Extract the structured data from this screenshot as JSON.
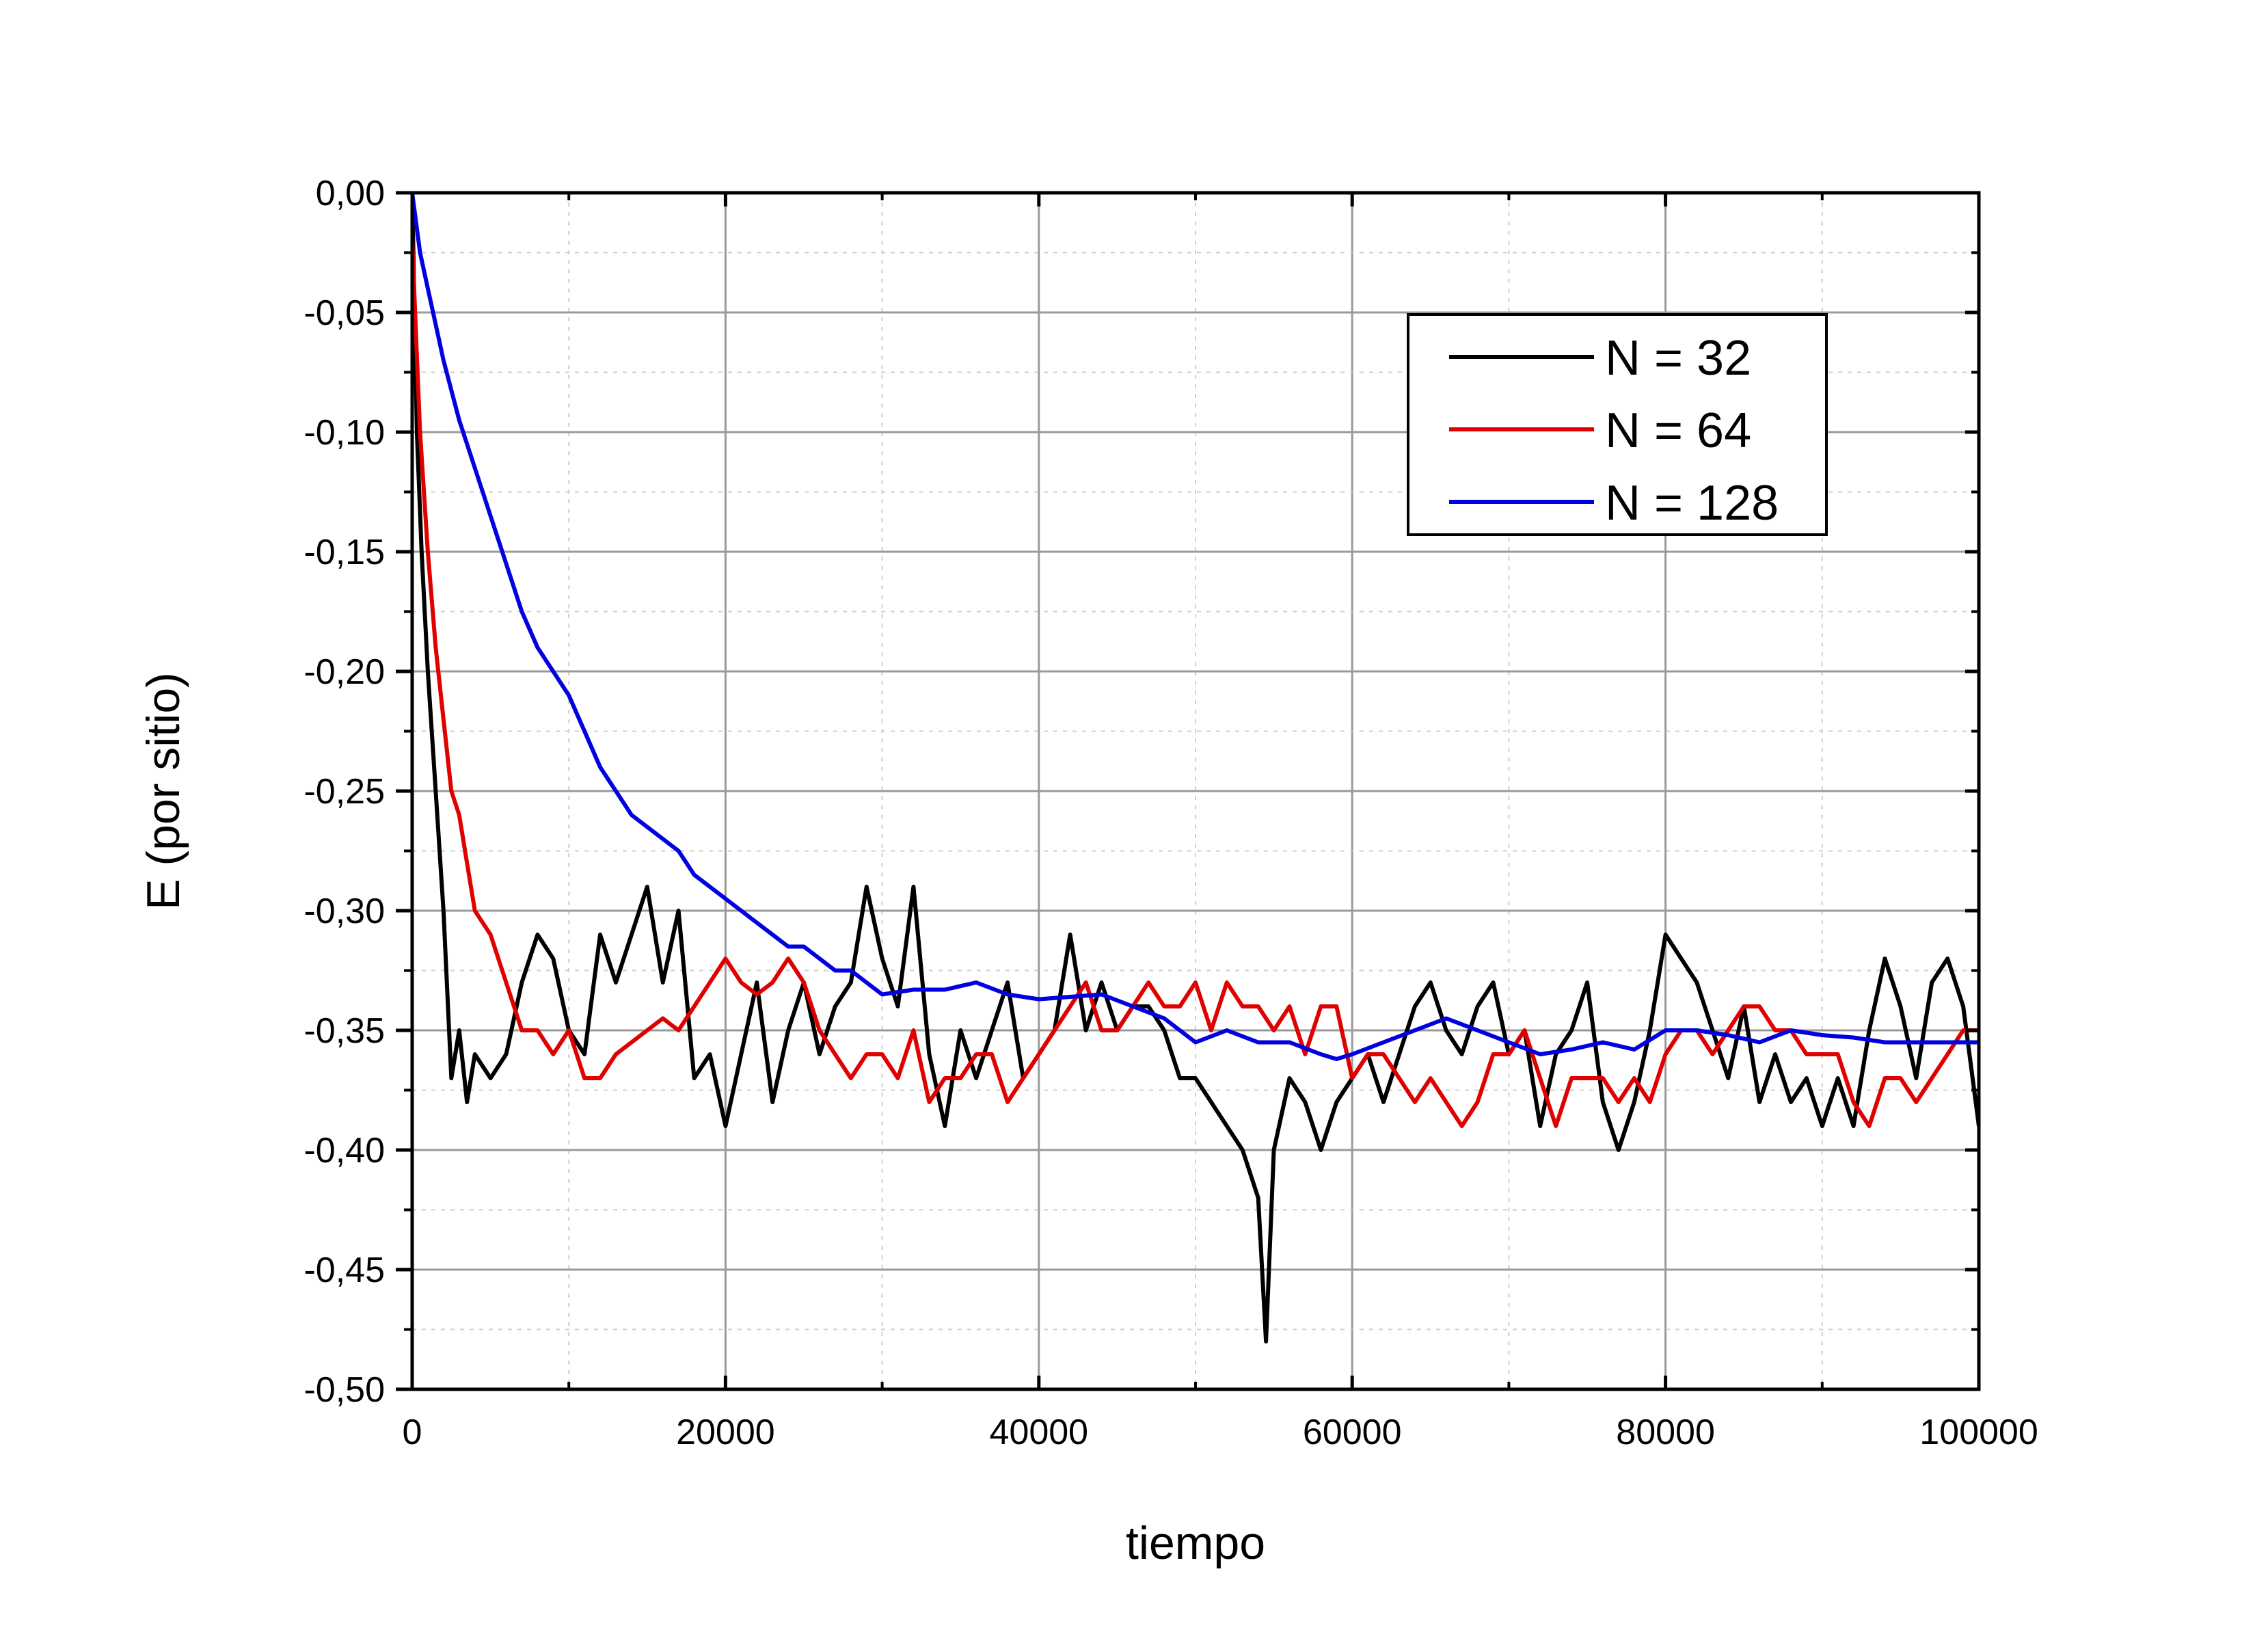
{
  "chart_data": {
    "type": "line",
    "title": "",
    "xlabel": "tiempo",
    "ylabel": "E (por sitio)",
    "xlim": [
      0,
      100000
    ],
    "ylim": [
      -0.5,
      0.0
    ],
    "x_ticks": [
      0,
      20000,
      40000,
      60000,
      80000,
      100000
    ],
    "x_tick_labels": [
      "0",
      "20000",
      "40000",
      "60000",
      "80000",
      "100000"
    ],
    "y_ticks": [
      0.0,
      -0.05,
      -0.1,
      -0.15,
      -0.2,
      -0.25,
      -0.3,
      -0.35,
      -0.4,
      -0.45,
      -0.5
    ],
    "y_tick_labels": [
      "0,00",
      "-0,05",
      "-0,10",
      "-0,15",
      "-0,20",
      "-0,25",
      "-0,30",
      "-0,35",
      "-0,40",
      "-0,45",
      "-0,50"
    ],
    "grid": true,
    "legend_position": "top-right",
    "series": [
      {
        "name": "N = 32",
        "color": "#000000",
        "x": [
          0,
          300,
          600,
          1000,
          1500,
          2000,
          2500,
          3000,
          3500,
          4000,
          5000,
          6000,
          7000,
          8000,
          9000,
          10000,
          11000,
          12000,
          13000,
          14000,
          15000,
          16000,
          17000,
          18000,
          19000,
          20000,
          21000,
          22000,
          23000,
          24000,
          25000,
          26000,
          27000,
          28000,
          29000,
          30000,
          31000,
          32000,
          33000,
          34000,
          35000,
          36000,
          37000,
          38000,
          39000,
          40000,
          41000,
          42000,
          43000,
          44000,
          45000,
          46000,
          47000,
          48000,
          49000,
          50000,
          51000,
          52000,
          53000,
          54000,
          54500,
          55000,
          56000,
          57000,
          58000,
          59000,
          60000,
          61000,
          62000,
          63000,
          64000,
          65000,
          66000,
          67000,
          68000,
          69000,
          70000,
          71000,
          72000,
          73000,
          74000,
          75000,
          76000,
          77000,
          78000,
          79000,
          80000,
          81000,
          82000,
          83000,
          84000,
          85000,
          86000,
          87000,
          88000,
          89000,
          90000,
          91000,
          92000,
          93000,
          94000,
          95000,
          96000,
          97000,
          98000,
          99000,
          100000
        ],
        "y": [
          0.0,
          -0.1,
          -0.15,
          -0.2,
          -0.25,
          -0.3,
          -0.37,
          -0.35,
          -0.38,
          -0.36,
          -0.37,
          -0.36,
          -0.33,
          -0.31,
          -0.32,
          -0.35,
          -0.36,
          -0.31,
          -0.33,
          -0.31,
          -0.29,
          -0.33,
          -0.3,
          -0.37,
          -0.36,
          -0.39,
          -0.36,
          -0.33,
          -0.38,
          -0.35,
          -0.33,
          -0.36,
          -0.34,
          -0.33,
          -0.29,
          -0.32,
          -0.34,
          -0.29,
          -0.36,
          -0.39,
          -0.35,
          -0.37,
          -0.35,
          -0.33,
          -0.37,
          -0.36,
          -0.35,
          -0.31,
          -0.35,
          -0.33,
          -0.35,
          -0.34,
          -0.34,
          -0.35,
          -0.37,
          -0.37,
          -0.38,
          -0.39,
          -0.4,
          -0.42,
          -0.48,
          -0.4,
          -0.37,
          -0.38,
          -0.4,
          -0.38,
          -0.37,
          -0.36,
          -0.38,
          -0.36,
          -0.34,
          -0.33,
          -0.35,
          -0.36,
          -0.34,
          -0.33,
          -0.36,
          -0.35,
          -0.39,
          -0.36,
          -0.35,
          -0.33,
          -0.38,
          -0.4,
          -0.38,
          -0.35,
          -0.31,
          -0.32,
          -0.33,
          -0.35,
          -0.37,
          -0.34,
          -0.38,
          -0.36,
          -0.38,
          -0.37,
          -0.39,
          -0.37,
          -0.39,
          -0.35,
          -0.32,
          -0.34,
          -0.37,
          -0.33,
          -0.32,
          -0.34,
          -0.39
        ]
      },
      {
        "name": "N = 64",
        "color": "#e00000",
        "x": [
          0,
          250,
          500,
          1000,
          1500,
          2000,
          2500,
          3000,
          3500,
          4000,
          5000,
          6000,
          7000,
          8000,
          9000,
          10000,
          11000,
          12000,
          13000,
          14000,
          15000,
          16000,
          17000,
          18000,
          19000,
          20000,
          21000,
          22000,
          23000,
          24000,
          25000,
          26000,
          27000,
          28000,
          29000,
          30000,
          31000,
          32000,
          33000,
          34000,
          35000,
          36000,
          37000,
          38000,
          39000,
          40000,
          41000,
          42000,
          43000,
          44000,
          45000,
          46000,
          47000,
          48000,
          49000,
          50000,
          51000,
          52000,
          53000,
          54000,
          55000,
          56000,
          57000,
          58000,
          59000,
          60000,
          61000,
          62000,
          63000,
          64000,
          65000,
          66000,
          67000,
          68000,
          69000,
          70000,
          71000,
          72000,
          73000,
          74000,
          75000,
          76000,
          77000,
          78000,
          79000,
          80000,
          81000,
          82000,
          83000,
          84000,
          85000,
          86000,
          87000,
          88000,
          89000,
          90000,
          91000,
          92000,
          93000,
          94000,
          95000,
          96000,
          97000,
          98000,
          99000,
          100000
        ],
        "y": [
          -0.02,
          -0.06,
          -0.1,
          -0.15,
          -0.19,
          -0.22,
          -0.25,
          -0.26,
          -0.28,
          -0.3,
          -0.31,
          -0.33,
          -0.35,
          -0.35,
          -0.36,
          -0.35,
          -0.37,
          -0.37,
          -0.36,
          -0.355,
          -0.35,
          -0.345,
          -0.35,
          -0.34,
          -0.33,
          -0.32,
          -0.33,
          -0.335,
          -0.33,
          -0.32,
          -0.33,
          -0.35,
          -0.36,
          -0.37,
          -0.36,
          -0.36,
          -0.37,
          -0.35,
          -0.38,
          -0.37,
          -0.37,
          -0.36,
          -0.36,
          -0.38,
          -0.37,
          -0.36,
          -0.35,
          -0.34,
          -0.33,
          -0.35,
          -0.35,
          -0.34,
          -0.33,
          -0.34,
          -0.34,
          -0.33,
          -0.35,
          -0.33,
          -0.34,
          -0.34,
          -0.35,
          -0.34,
          -0.36,
          -0.34,
          -0.34,
          -0.37,
          -0.36,
          -0.36,
          -0.37,
          -0.38,
          -0.37,
          -0.38,
          -0.39,
          -0.38,
          -0.36,
          -0.36,
          -0.35,
          -0.37,
          -0.39,
          -0.37,
          -0.37,
          -0.37,
          -0.38,
          -0.37,
          -0.38,
          -0.36,
          -0.35,
          -0.35,
          -0.36,
          -0.35,
          -0.34,
          -0.34,
          -0.35,
          -0.35,
          -0.36,
          -0.36,
          -0.36,
          -0.38,
          -0.39,
          -0.37,
          -0.37,
          -0.38,
          -0.37,
          -0.36,
          -0.35,
          -0.35
        ]
      },
      {
        "name": "N = 128",
        "color": "#0000e0",
        "x": [
          0,
          500,
          1000,
          1500,
          2000,
          3000,
          4000,
          5000,
          6000,
          7000,
          8000,
          9000,
          10000,
          11000,
          12000,
          13000,
          14000,
          15000,
          16000,
          17000,
          18000,
          19000,
          20000,
          21000,
          22000,
          23000,
          24000,
          25000,
          26000,
          27000,
          28000,
          29000,
          30000,
          32000,
          34000,
          36000,
          38000,
          40000,
          42000,
          44000,
          46000,
          48000,
          50000,
          52000,
          54000,
          56000,
          58000,
          59000,
          60000,
          62000,
          64000,
          66000,
          68000,
          70000,
          72000,
          74000,
          76000,
          78000,
          80000,
          82000,
          84000,
          86000,
          88000,
          90000,
          92000,
          94000,
          96000,
          98000,
          100000
        ],
        "y": [
          0.0,
          -0.025,
          -0.04,
          -0.055,
          -0.07,
          -0.095,
          -0.115,
          -0.135,
          -0.155,
          -0.175,
          -0.19,
          -0.2,
          -0.21,
          -0.225,
          -0.24,
          -0.25,
          -0.26,
          -0.265,
          -0.27,
          -0.275,
          -0.285,
          -0.29,
          -0.295,
          -0.3,
          -0.305,
          -0.31,
          -0.315,
          -0.315,
          -0.32,
          -0.325,
          -0.325,
          -0.33,
          -0.335,
          -0.333,
          -0.333,
          -0.33,
          -0.335,
          -0.337,
          -0.336,
          -0.335,
          -0.34,
          -0.345,
          -0.355,
          -0.35,
          -0.355,
          -0.355,
          -0.36,
          -0.362,
          -0.36,
          -0.355,
          -0.35,
          -0.345,
          -0.35,
          -0.355,
          -0.36,
          -0.358,
          -0.355,
          -0.358,
          -0.35,
          -0.35,
          -0.352,
          -0.355,
          -0.35,
          -0.352,
          -0.353,
          -0.355,
          -0.355,
          -0.355,
          -0.355
        ]
      }
    ]
  }
}
